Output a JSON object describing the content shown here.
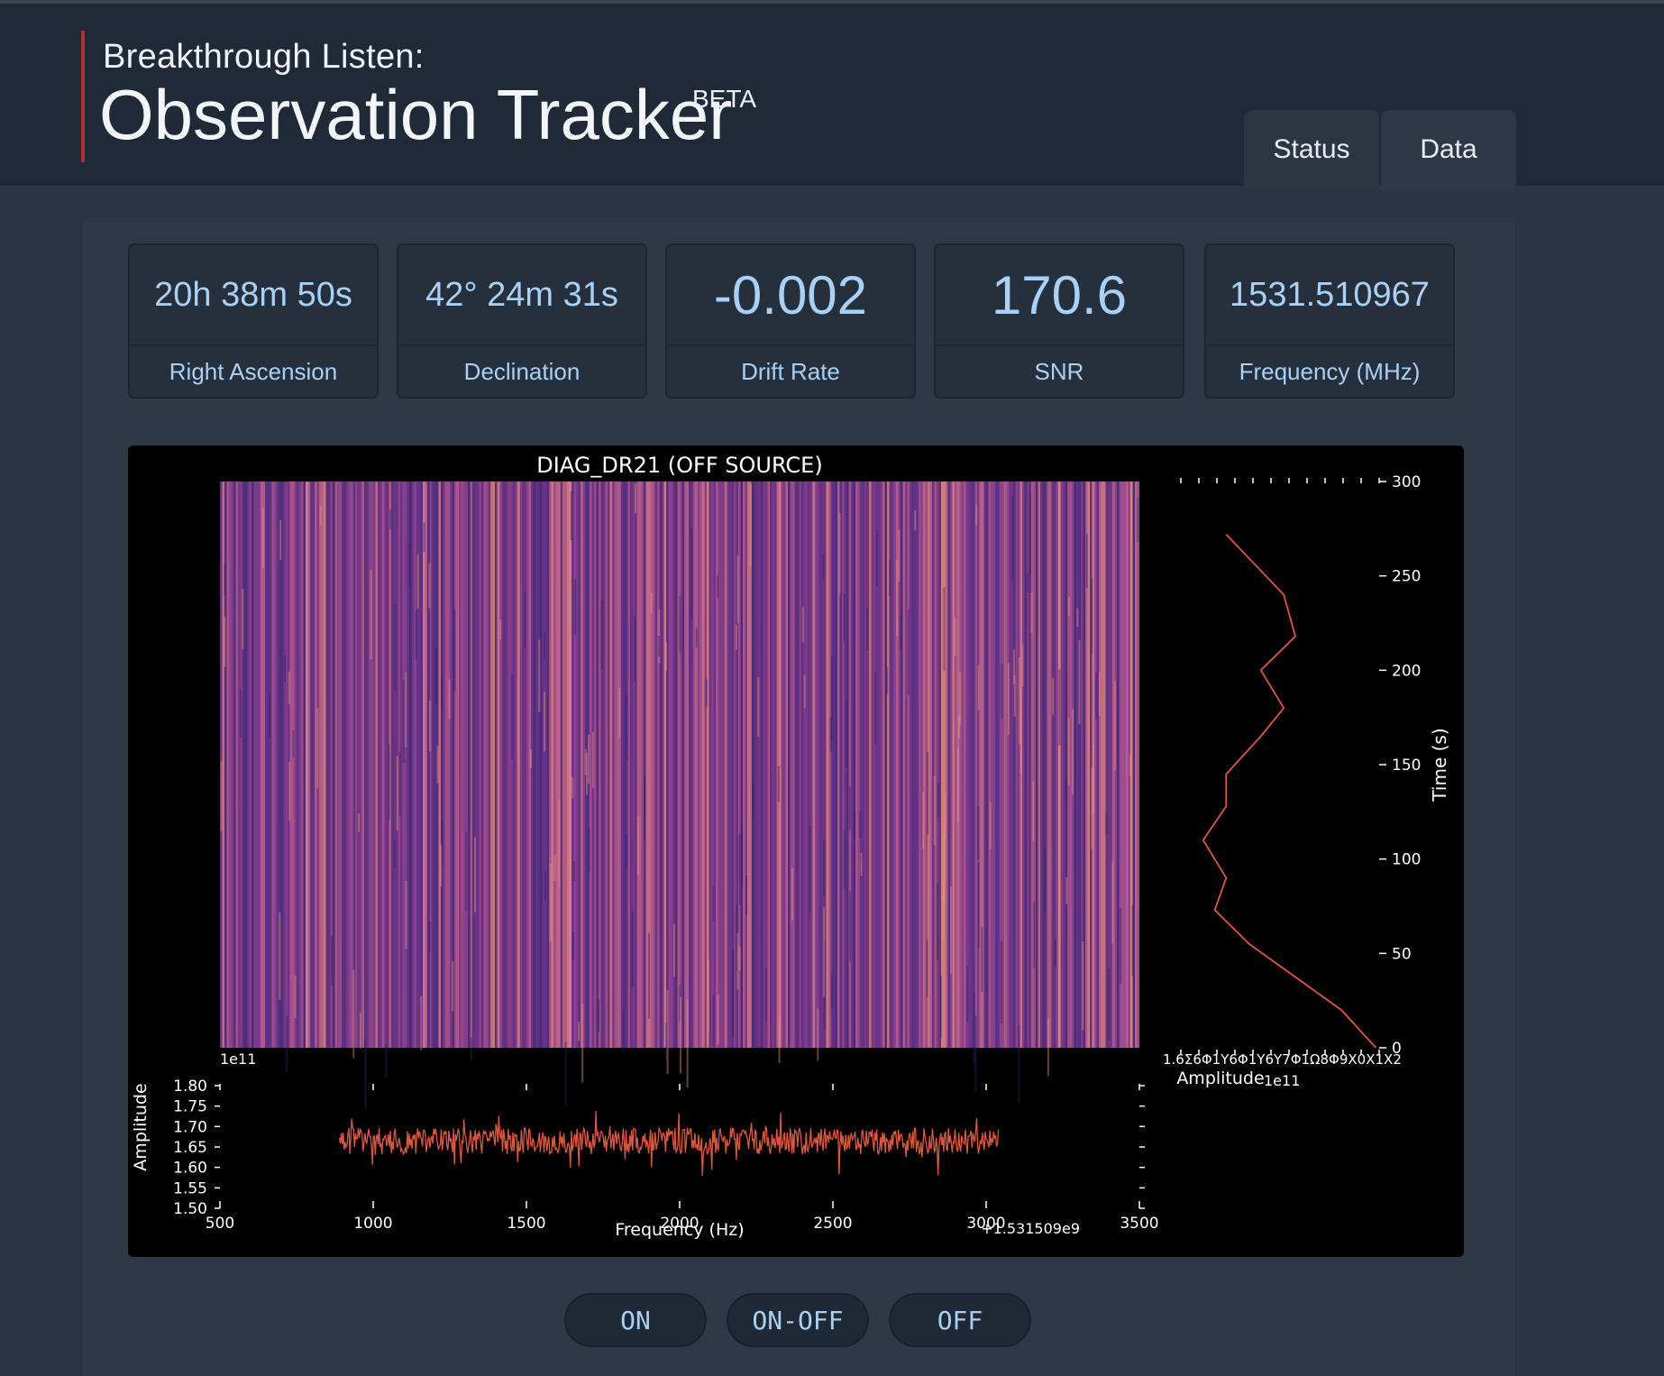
{
  "header": {
    "subtitle": "Breakthrough Listen:",
    "title": "Observation Tracker",
    "badge": "BETA"
  },
  "tabs": [
    {
      "label": "Status"
    },
    {
      "label": "Data"
    }
  ],
  "metrics": [
    {
      "value": "20h 38m 50s",
      "label": "Right Ascension"
    },
    {
      "value": "42° 24m 31s",
      "label": "Declination"
    },
    {
      "value": "-0.002",
      "label": "Drift Rate"
    },
    {
      "value": "170.6",
      "label": "SNR"
    },
    {
      "value": "1531.510967",
      "label": "Frequency (MHz)"
    }
  ],
  "buttons": [
    {
      "label": "ON"
    },
    {
      "label": "ON-OFF"
    },
    {
      "label": "OFF"
    }
  ],
  "colors": {
    "header_bg": "#1f2937",
    "page_bg": "#2a3443",
    "accent_red": "#b0302c",
    "metric_text": "#a9d0f5",
    "trace": "#e0563b"
  },
  "chart_data": [
    {
      "type": "heatmap",
      "title": "DIAG_DR21 (OFF SOURCE)",
      "colormap": "magma-like (purple to orange)",
      "x_range": [
        500,
        3500
      ],
      "y_range": [
        0,
        300
      ],
      "note_values": "noise-like waterfall spectrogram, no discernible signal"
    },
    {
      "type": "line",
      "xlabel": "Frequency (Hz)",
      "ylabel": "Amplitude",
      "x_offset_label": "+1.531509e9",
      "y_exponent_label": "1e11",
      "xlim": [
        500,
        3500
      ],
      "ylim": [
        1.5,
        1.8
      ],
      "x_ticks": [
        "500",
        "1000",
        "1500",
        "2000",
        "2500",
        "3000",
        "3500"
      ],
      "y_ticks": [
        "1.50",
        "1.55",
        "1.60",
        "1.65",
        "1.70",
        "1.75",
        "1.80"
      ],
      "x_data_range": [
        890,
        3040
      ],
      "y_mean": 1.665,
      "y_spread": [
        1.58,
        1.75
      ]
    },
    {
      "type": "line",
      "xlabel": "Amplitude",
      "ylabel": "Time (s)",
      "x_exponent_label": "1e11",
      "x_tick_text": "1.6Σ6Φ1Υ6Φ1Υ6Υ7Φ1Ω8Φ9Χ0Χ1Χ2",
      "ylim": [
        0,
        300
      ],
      "y_ticks": [
        "0",
        "50",
        "100",
        "150",
        "200",
        "250",
        "300"
      ],
      "series": [
        {
          "x": [
            1.71,
            1.695,
            1.655,
            1.64,
            1.645,
            1.635,
            1.645,
            1.645,
            1.66,
            1.67,
            1.66,
            1.675,
            1.67,
            1.645
          ],
          "y": [
            0,
            20,
            55,
            73,
            90,
            110,
            128,
            145,
            165,
            180,
            200,
            218,
            240,
            272
          ]
        }
      ]
    }
  ]
}
